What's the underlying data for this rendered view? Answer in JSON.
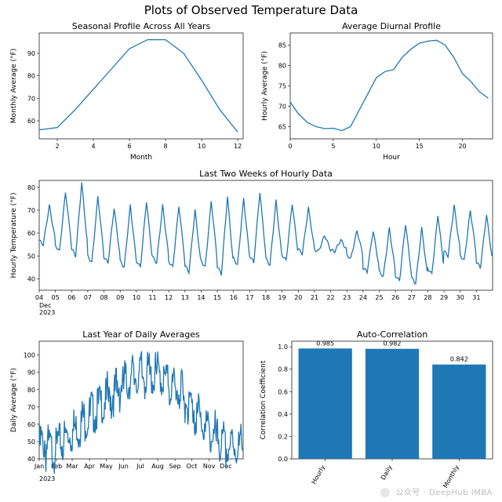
{
  "suptitle": "Plots of Observed Temperature Data",
  "colors": {
    "line": "#1f77b4",
    "bar": "#1f77b4",
    "spine": "#000000",
    "bg": "#ffffff"
  },
  "watermark": "公众号 · DeepHub IMBA",
  "panels": {
    "seasonal": {
      "title": "Seasonal Profile Across All Years",
      "xlabel": "Month",
      "ylabel": "Monthly Average (°F)",
      "xlim": [
        1,
        12.3
      ],
      "ylim": [
        52,
        99
      ],
      "xticks": [
        2,
        4,
        6,
        8,
        10,
        12
      ],
      "yticks": [
        60,
        70,
        80,
        90
      ],
      "x": [
        1,
        2,
        3,
        4,
        5,
        6,
        7,
        8,
        9,
        10,
        11,
        12
      ],
      "y": [
        56,
        57,
        65,
        74,
        83,
        92,
        96,
        96,
        90,
        78,
        65,
        55
      ]
    },
    "diurnal": {
      "title": "Average Diurnal Profile",
      "xlabel": "Hour",
      "ylabel": "Hourly Average (°F)",
      "xlim": [
        0,
        23.5
      ],
      "ylim": [
        62,
        88
      ],
      "xticks": [
        0,
        5,
        10,
        15,
        20
      ],
      "yticks": [
        65,
        70,
        75,
        80,
        85
      ],
      "x": [
        0,
        1,
        2,
        3,
        4,
        5,
        6,
        7,
        8,
        9,
        10,
        11,
        12,
        13,
        14,
        15,
        16,
        17,
        18,
        19,
        20,
        21,
        22,
        23
      ],
      "y": [
        71,
        68,
        66,
        65,
        64.5,
        64.6,
        64,
        65,
        69,
        73,
        77,
        78.5,
        79,
        82,
        84,
        85.5,
        86,
        86.2,
        85,
        82,
        78,
        76,
        73.5,
        72
      ]
    },
    "twoweeks": {
      "title": "Last Two Weeks of Hourly Data",
      "ylabel": "Hourly Temperature (°F)",
      "sublabel_line1": "Dec",
      "sublabel_line2": "2023",
      "xlim": [
        0,
        672
      ],
      "ylim": [
        35,
        83
      ],
      "xticks_pos": [
        0,
        24,
        48,
        72,
        96,
        120,
        144,
        168,
        192,
        216,
        240,
        264,
        288,
        312,
        336,
        360,
        384,
        408,
        432,
        456,
        480,
        504,
        528,
        552,
        576,
        600,
        624,
        648
      ],
      "xticks_lbl": [
        "04",
        "05",
        "06",
        "07",
        "08",
        "09",
        "10",
        "11",
        "12",
        "13",
        "14",
        "15",
        "16",
        "17",
        "18",
        "19",
        "20",
        "21",
        "22",
        "23",
        "24",
        "25",
        "26",
        "27",
        "28",
        "29",
        "30",
        "31"
      ],
      "yticks": [
        40,
        50,
        60,
        70,
        80
      ],
      "days": [
        {
          "lo": 55,
          "hi": 72
        },
        {
          "lo": 52,
          "hi": 78
        },
        {
          "lo": 50,
          "hi": 82
        },
        {
          "lo": 47,
          "hi": 76
        },
        {
          "lo": 47,
          "hi": 71
        },
        {
          "lo": 45,
          "hi": 72
        },
        {
          "lo": 45,
          "hi": 74
        },
        {
          "lo": 47,
          "hi": 72
        },
        {
          "lo": 45,
          "hi": 72
        },
        {
          "lo": 43,
          "hi": 70
        },
        {
          "lo": 45,
          "hi": 74
        },
        {
          "lo": 42,
          "hi": 76
        },
        {
          "lo": 46,
          "hi": 75
        },
        {
          "lo": 47,
          "hi": 78
        },
        {
          "lo": 46,
          "hi": 74
        },
        {
          "lo": 48,
          "hi": 73
        },
        {
          "lo": 51,
          "hi": 71
        },
        {
          "lo": 52,
          "hi": 59
        },
        {
          "lo": 52,
          "hi": 57
        },
        {
          "lo": 49,
          "hi": 61
        },
        {
          "lo": 43,
          "hi": 61
        },
        {
          "lo": 41,
          "hi": 62
        },
        {
          "lo": 39,
          "hi": 64
        },
        {
          "lo": 38,
          "hi": 62
        },
        {
          "lo": 42,
          "hi": 68
        },
        {
          "lo": 50,
          "hi": 72
        },
        {
          "lo": 48,
          "hi": 70
        },
        {
          "lo": 45,
          "hi": 68
        }
      ]
    },
    "yearly": {
      "title": "Last Year of Daily Averages",
      "ylabel": "Daily Average (°F)",
      "sublabel": "2023",
      "xlim": [
        0,
        365
      ],
      "ylim": [
        40,
        108
      ],
      "xticks_pos": [
        0,
        31,
        59,
        90,
        120,
        151,
        181,
        212,
        243,
        273,
        304,
        334
      ],
      "xticks_lbl": [
        "Jan",
        "Feb",
        "Mar",
        "Apr",
        "May",
        "Jun",
        "Jul",
        "Aug",
        "Sep",
        "Oct",
        "Nov",
        "Dec"
      ],
      "yticks": [
        40,
        50,
        60,
        70,
        80,
        90,
        100
      ],
      "month_means": [
        56,
        57,
        65,
        74,
        83,
        92,
        97,
        98,
        90,
        78,
        65,
        55
      ],
      "noise_amp": 7
    },
    "autocorr": {
      "title": "Auto-Correlation",
      "ylabel": "Correlation Coefficient",
      "categories": [
        "Hourly",
        "Daily",
        "Monthly"
      ],
      "values": [
        0.985,
        0.982,
        0.842
      ],
      "value_labels": [
        "0.985",
        "0.982",
        "0.842"
      ],
      "ylim": [
        0,
        1.05
      ],
      "yticks": [
        0.0,
        0.2,
        0.4,
        0.6,
        0.8,
        1.0
      ],
      "ytick_labels": [
        "0.0",
        "0.2",
        "0.4",
        "0.6",
        "0.8",
        "1.0"
      ],
      "bar_width": 0.8
    }
  }
}
